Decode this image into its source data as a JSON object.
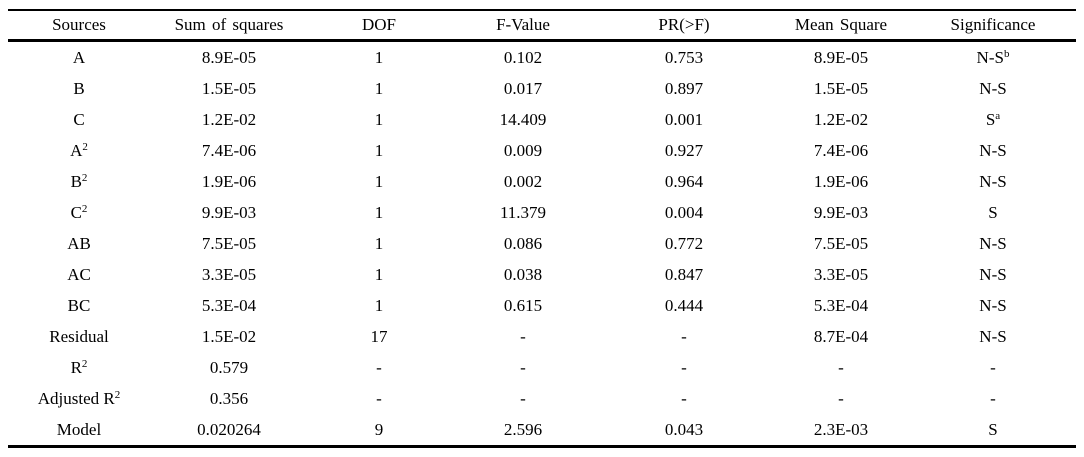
{
  "table": {
    "columns": [
      {
        "label": "Sources",
        "key": "sources"
      },
      {
        "label": "Sum of squares",
        "key": "sum-of-squares"
      },
      {
        "label": "DOF",
        "key": "dof"
      },
      {
        "label": "F-Value",
        "key": "f-value"
      },
      {
        "label": "PR(>F)",
        "key": "pr-f"
      },
      {
        "label": "Mean Square",
        "key": "mean-square"
      },
      {
        "label": "Significance",
        "key": "significance"
      }
    ],
    "rows": [
      {
        "cells": [
          "A",
          "8.9E-05",
          "1",
          "0.102",
          "0.753",
          "8.9E-05",
          "N-S"
        ],
        "sups": [
          "",
          "",
          "",
          "",
          "",
          "",
          "b"
        ]
      },
      {
        "cells": [
          "B",
          "1.5E-05",
          "1",
          "0.017",
          "0.897",
          "1.5E-05",
          "N-S"
        ],
        "sups": [
          "",
          "",
          "",
          "",
          "",
          "",
          ""
        ]
      },
      {
        "cells": [
          "C",
          "1.2E-02",
          "1",
          "14.409",
          "0.001",
          "1.2E-02",
          "S"
        ],
        "sups": [
          "",
          "",
          "",
          "",
          "",
          "",
          "a"
        ]
      },
      {
        "cells": [
          "A",
          "7.4E-06",
          "1",
          "0.009",
          "0.927",
          "7.4E-06",
          "N-S"
        ],
        "sups": [
          "2",
          "",
          "",
          "",
          "",
          "",
          ""
        ]
      },
      {
        "cells": [
          "B",
          "1.9E-06",
          "1",
          "0.002",
          "0.964",
          "1.9E-06",
          "N-S"
        ],
        "sups": [
          "2",
          "",
          "",
          "",
          "",
          "",
          ""
        ]
      },
      {
        "cells": [
          "C",
          "9.9E-03",
          "1",
          "11.379",
          "0.004",
          "9.9E-03",
          "S"
        ],
        "sups": [
          "2",
          "",
          "",
          "",
          "",
          "",
          ""
        ]
      },
      {
        "cells": [
          "AB",
          "7.5E-05",
          "1",
          "0.086",
          "0.772",
          "7.5E-05",
          "N-S"
        ],
        "sups": [
          "",
          "",
          "",
          "",
          "",
          "",
          ""
        ]
      },
      {
        "cells": [
          "AC",
          "3.3E-05",
          "1",
          "0.038",
          "0.847",
          "3.3E-05",
          "N-S"
        ],
        "sups": [
          "",
          "",
          "",
          "",
          "",
          "",
          ""
        ]
      },
      {
        "cells": [
          "BC",
          "5.3E-04",
          "1",
          "0.615",
          "0.444",
          "5.3E-04",
          "N-S"
        ],
        "sups": [
          "",
          "",
          "",
          "",
          "",
          "",
          ""
        ]
      },
      {
        "cells": [
          "Residual",
          "1.5E-02",
          "17",
          "-",
          "-",
          "8.7E-04",
          "N-S"
        ],
        "sups": [
          "",
          "",
          "",
          "",
          "",
          "",
          ""
        ]
      },
      {
        "cells": [
          "R",
          "0.579",
          "-",
          "-",
          "-",
          "-",
          "-"
        ],
        "sups": [
          "2",
          "",
          "",
          "",
          "",
          "",
          ""
        ]
      },
      {
        "cells": [
          "Adjusted R",
          "0.356",
          "-",
          "-",
          "-",
          "-",
          "-"
        ],
        "sups": [
          "2",
          "",
          "",
          "",
          "",
          "",
          ""
        ]
      },
      {
        "cells": [
          "Model",
          "0.020264",
          "9",
          "2.596",
          "0.043",
          "2.3E-03",
          "S"
        ],
        "sups": [
          "",
          "",
          "",
          "",
          "",
          "",
          ""
        ]
      }
    ],
    "text_color": "#000000",
    "rule_color": "#000000",
    "background_color": "#ffffff"
  }
}
